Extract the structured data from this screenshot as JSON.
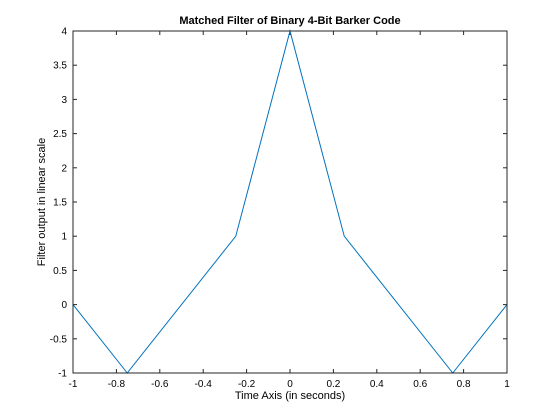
{
  "chart_data": {
    "type": "line",
    "title": "Matched Filter of Binary 4-Bit Barker Code",
    "xlabel": "Time Axis (in seconds)",
    "ylabel": "Filter output in linear scale",
    "xlim": [
      -1,
      1
    ],
    "ylim": [
      -1,
      4
    ],
    "xticks": [
      -1,
      -0.8,
      -0.6,
      -0.4,
      -0.2,
      0,
      0.2,
      0.4,
      0.6,
      0.8,
      1
    ],
    "xtick_labels": [
      "-1",
      "-0.8",
      "-0.6",
      "-0.4",
      "-0.2",
      "0",
      "0.2",
      "0.4",
      "0.6",
      "0.8",
      "1"
    ],
    "yticks": [
      -1,
      -0.5,
      0,
      0.5,
      1,
      1.5,
      2,
      2.5,
      3,
      3.5,
      4
    ],
    "ytick_labels": [
      "-1",
      "-0.5",
      "0",
      "0.5",
      "1",
      "1.5",
      "2",
      "2.5",
      "3",
      "3.5",
      "4"
    ],
    "grid": false,
    "series": [
      {
        "color": "#0072bd",
        "x": [
          -1,
          -0.75,
          -0.25,
          0,
          0.25,
          0.75,
          1
        ],
        "y": [
          0,
          -1,
          1,
          4,
          1,
          -1,
          0
        ]
      }
    ]
  }
}
